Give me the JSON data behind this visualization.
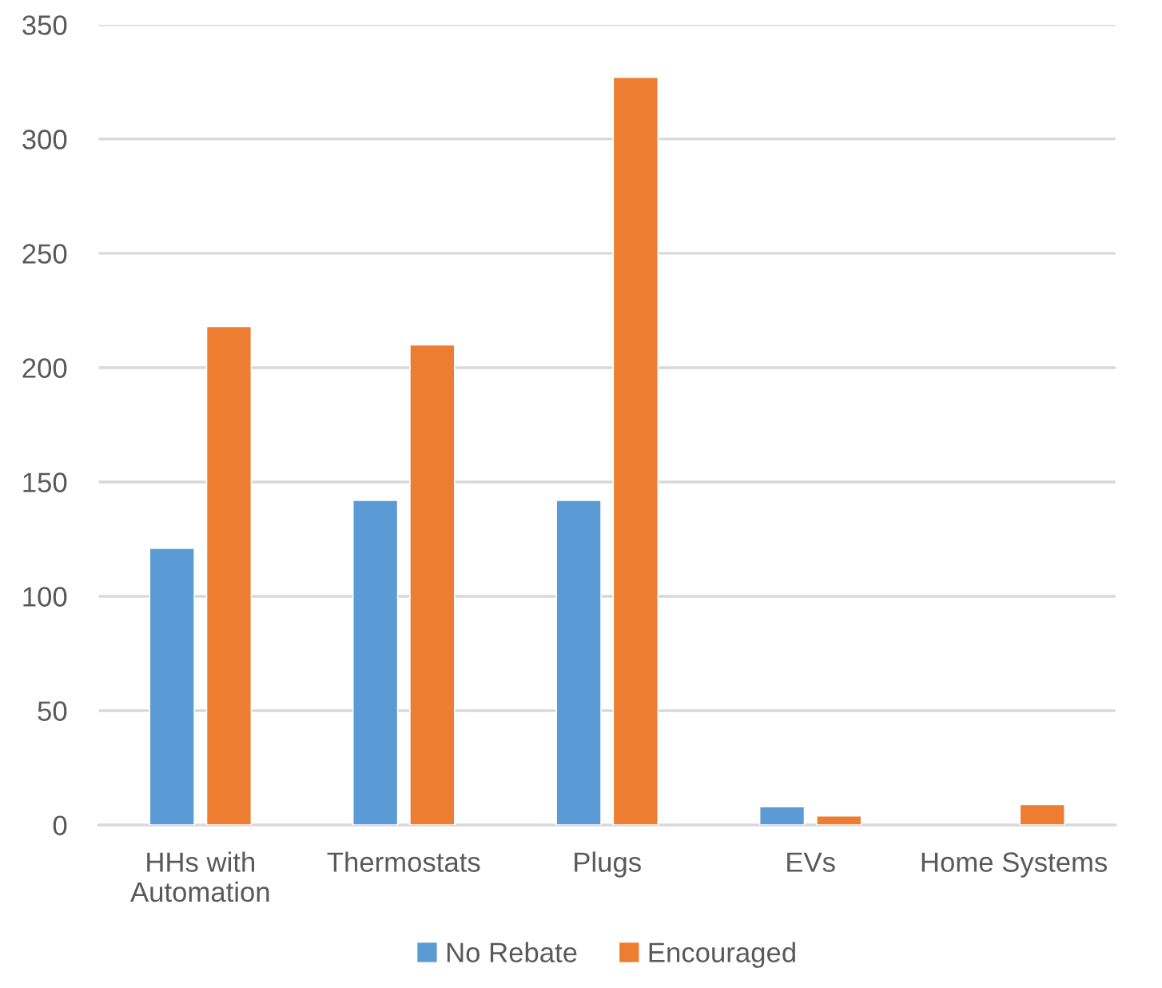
{
  "chart_data": {
    "type": "bar",
    "categories": [
      "HHs with\nAutomation",
      "Thermostats",
      "Plugs",
      "EVs",
      "Home Systems"
    ],
    "series": [
      {
        "name": "No Rebate",
        "color": "#5b9bd5",
        "values": [
          121,
          142,
          142,
          8,
          null
        ]
      },
      {
        "name": "Encouraged",
        "color": "#ed7d31",
        "values": [
          218,
          210,
          327,
          4,
          9
        ]
      }
    ],
    "ylim": [
      0,
      350
    ],
    "yticks": [
      0,
      50,
      100,
      150,
      200,
      250,
      300,
      350
    ],
    "grid": "y",
    "legend": "bottom"
  }
}
